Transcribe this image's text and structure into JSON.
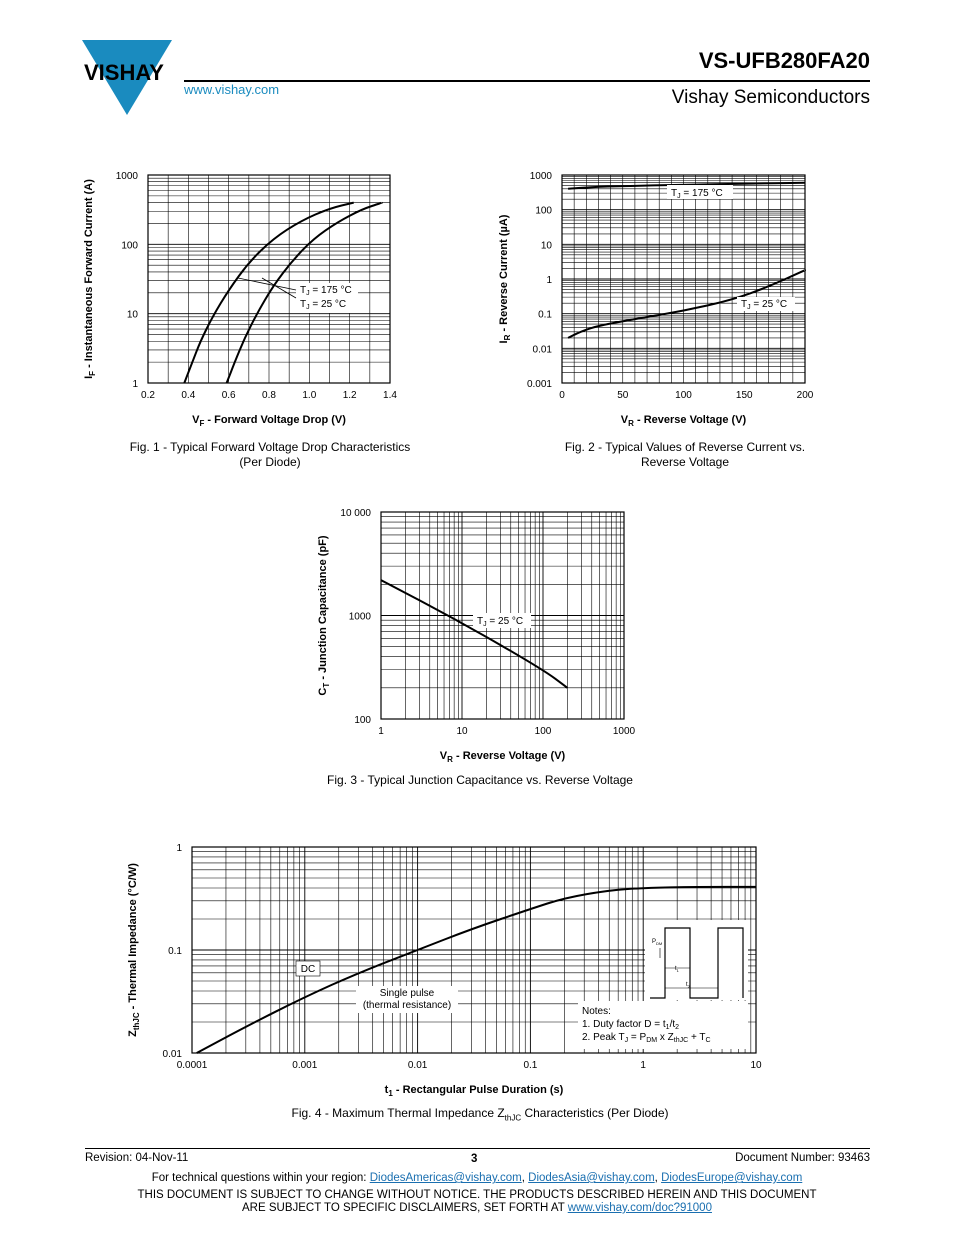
{
  "header": {
    "brand": "VISHAY",
    "url": "www.vishay.com",
    "part_number": "VS-UFB280FA20",
    "company": "Vishay Semiconductors"
  },
  "chart_data": [
    {
      "id": "fig1",
      "type": "line",
      "caption_line1": "Fig. 1 - Typical Forward Voltage Drop Characteristics",
      "caption_line2": "(Per Diode)",
      "xlabel_main": "V",
      "xlabel_sub": "F",
      "xlabel_rest": " - Forward Voltage Drop (V)",
      "ylabel_main": "I",
      "ylabel_sub": "F",
      "ylabel_rest": " - Instantaneous Forward Current (A)",
      "xlim": [
        0.2,
        1.4
      ],
      "ylim": [
        1,
        1000
      ],
      "yscale": "log",
      "xticks": [
        "0.2",
        "0.4",
        "0.6",
        "0.8",
        "1.0",
        "1.2",
        "1.4"
      ],
      "yticks": [
        "1",
        "10",
        "100",
        "1000"
      ],
      "series": [
        {
          "name": "T_J = 175 °C",
          "x": [
            0.38,
            0.42,
            0.46,
            0.52,
            0.6,
            0.7,
            0.82,
            0.96,
            1.1,
            1.22
          ],
          "y": [
            1,
            2,
            4,
            9,
            22,
            55,
            120,
            220,
            330,
            400
          ]
        },
        {
          "name": "T_J = 25 °C",
          "x": [
            0.59,
            0.63,
            0.68,
            0.74,
            0.82,
            0.92,
            1.02,
            1.14,
            1.26,
            1.36
          ],
          "y": [
            1,
            2,
            4.5,
            10,
            25,
            60,
            120,
            210,
            320,
            400
          ]
        }
      ],
      "labels": [
        "T_J = 175 °C",
        "T_J = 25 °C"
      ]
    },
    {
      "id": "fig2",
      "type": "line",
      "caption_line1": "Fig. 2 - Typical Values of Reverse Current vs.",
      "caption_line2": "Reverse Voltage",
      "xlabel_main": "V",
      "xlabel_sub": "R",
      "xlabel_rest": " - Reverse Voltage (V)",
      "ylabel_main": "I",
      "ylabel_sub": "R",
      "ylabel_rest": " - Reverse Current (µA)",
      "xlim": [
        0,
        200
      ],
      "ylim": [
        0.001,
        1000
      ],
      "yscale": "log",
      "xticks": [
        "0",
        "50",
        "100",
        "150",
        "200"
      ],
      "yticks": [
        "0.001",
        "0.01",
        "0.1",
        "1",
        "10",
        "100",
        "1000"
      ],
      "series": [
        {
          "name": "T_J = 175 °C",
          "x": [
            5,
            25,
            50,
            100,
            150,
            200
          ],
          "y": [
            400,
            450,
            480,
            520,
            560,
            600
          ]
        },
        {
          "name": "T_J = 25 °C",
          "x": [
            5,
            15,
            30,
            60,
            100,
            140,
            170,
            200
          ],
          "y": [
            0.02,
            0.03,
            0.045,
            0.07,
            0.12,
            0.25,
            0.6,
            1.8
          ]
        }
      ],
      "labels": [
        "T_J = 175 °C",
        "T_J = 25 °C"
      ]
    },
    {
      "id": "fig3",
      "type": "line",
      "caption_line1": "Fig. 3 - Typical Junction Capacitance vs. Reverse Voltage",
      "caption_line2": "",
      "xlabel_main": "V",
      "xlabel_sub": "R",
      "xlabel_rest": " - Reverse Voltage (V)",
      "ylabel_main": "C",
      "ylabel_sub": "T",
      "ylabel_rest": " - Junction Capacitance (pF)",
      "xlim": [
        1,
        1000
      ],
      "ylim": [
        100,
        10000
      ],
      "xscale": "log",
      "yscale": "log",
      "xticks": [
        "1",
        "10",
        "100",
        "1000"
      ],
      "yticks": [
        "100",
        "1000",
        "10 000"
      ],
      "series": [
        {
          "name": "T_J = 25 °C",
          "x": [
            1,
            10,
            100,
            200
          ],
          "y": [
            2200,
            850,
            300,
            200
          ]
        }
      ],
      "labels": [
        "T_J = 25 °C"
      ]
    },
    {
      "id": "fig4",
      "type": "line",
      "caption_line1": "Fig. 4 - Maximum Thermal Impedance Z",
      "caption_sub": "thJC",
      "caption_rest": " Characteristics (Per Diode)",
      "xlabel_main": "t",
      "xlabel_sub": "1",
      "xlabel_rest": " - Rectangular Pulse Duration (s)",
      "ylabel_main": "Z",
      "ylabel_sub": "thJC",
      "ylabel_rest": " - Thermal Impedance (°C/W)",
      "xlim": [
        0.0001,
        10
      ],
      "ylim": [
        0.01,
        1
      ],
      "xscale": "log",
      "yscale": "log",
      "xticks": [
        "0.0001",
        "0.001",
        "0.01",
        "0.1",
        "1",
        "10"
      ],
      "yticks": [
        "0.01",
        "0.1",
        "1"
      ],
      "series": [
        {
          "name": "DC",
          "x": [
            0.00011,
            0.0003,
            0.001,
            0.003,
            0.01,
            0.03,
            0.1,
            0.2,
            0.5,
            1,
            3,
            10
          ],
          "y": [
            0.01,
            0.018,
            0.035,
            0.06,
            0.1,
            0.16,
            0.25,
            0.32,
            0.38,
            0.4,
            0.41,
            0.41
          ]
        }
      ],
      "labels": [
        "DC",
        "Single pulse",
        "(thermal resistance)"
      ],
      "notes": [
        "Notes:",
        "1. Duty factor D = t",
        "2. Peak T"
      ],
      "inset_labels": [
        "P",
        "DM",
        "t",
        "1",
        "t",
        "2"
      ]
    }
  ],
  "footer": {
    "revision": "Revision: 04-Nov-11",
    "page": "3",
    "doc_number": "Document Number: 93463",
    "contact_prefix": "For technical questions within your region: ",
    "email1": "DiodesAmericas@vishay.com",
    "sep1": ", ",
    "email2": "DiodesAsia@vishay.com",
    "sep2": ", ",
    "email3": "DiodesEurope@vishay.com",
    "disclaimer1": "THIS DOCUMENT IS SUBJECT TO CHANGE WITHOUT NOTICE. THE PRODUCTS DESCRIBED HEREIN AND THIS DOCUMENT",
    "disclaimer2": "ARE SUBJECT TO SPECIFIC DISCLAIMERS, SET FORTH AT ",
    "disclaimer_url": "www.vishay.com/doc?91000"
  },
  "colors": {
    "link": "#1a8bbf",
    "logo": "#1a8bbf"
  }
}
